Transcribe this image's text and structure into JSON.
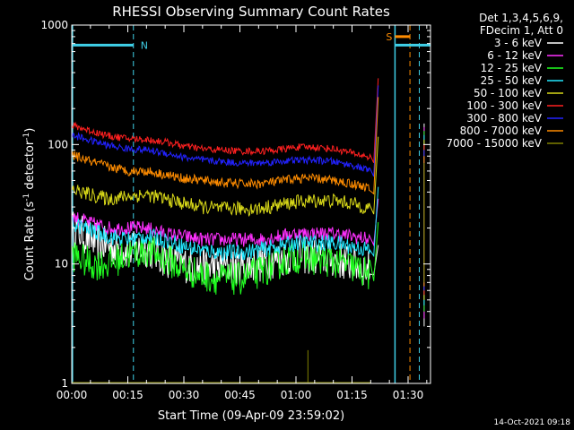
{
  "chart_data": {
    "type": "line",
    "title": "RHESSI Observing Summary Count Rates",
    "xlabel": "Start Time (09-Apr-09 23:59:02)",
    "ylabel": "Count Rate (s",
    "ylabel_sup1": "-1",
    "ylabel_mid": " detector",
    "ylabel_sup2": "-1",
    "ylabel_end": ")",
    "yscale": "log",
    "ylim": [
      1,
      1000
    ],
    "xlim_minutes": [
      0,
      96
    ],
    "x_ticks": [
      "00:00",
      "00:15",
      "00:30",
      "00:45",
      "01:00",
      "01:15",
      "01:30"
    ],
    "y_ticks": [
      "1",
      "10",
      "100",
      "1000"
    ],
    "legend_header": [
      "Det 1,3,4,5,6,9,",
      "FDecim 1, Att 0"
    ],
    "timestamp": "14-Oct-2021 09:18",
    "flags": [
      {
        "label": "N",
        "color": "#3fd0e8",
        "start": 0,
        "end": 16.5,
        "value": 680
      },
      {
        "label": "S",
        "color": "#ff8c00",
        "start": 86.5,
        "end": 90.5,
        "value": 800
      }
    ],
    "flag_s_extra": {
      "color": "#3fd0e8",
      "start": 86.5,
      "end": 96,
      "value": 680
    },
    "dashed_lines": [
      {
        "x": 16.5,
        "color": "#3fd0e8"
      },
      {
        "x": 90.5,
        "color": "#ff8c00"
      },
      {
        "x": 93.0,
        "color": "#3fd0e8"
      }
    ],
    "solid_lines": [
      {
        "x": 0.2,
        "color": "#3fd0e8"
      },
      {
        "x": 86.5,
        "color": "#3fd0e8"
      }
    ],
    "series": [
      {
        "name": "3 - 6 keV",
        "color": "#ffffff",
        "noise": 0.32,
        "times": [
          0,
          5,
          10,
          15,
          20,
          25,
          30,
          35,
          40,
          45,
          50,
          55,
          60,
          65,
          70,
          75,
          80
        ],
        "values": [
          20,
          16,
          14,
          13,
          13.5,
          11,
          10,
          9.5,
          9.5,
          9.5,
          10,
          11,
          12,
          11.5,
          11,
          10,
          9
        ]
      },
      {
        "name": "6 - 12 keV",
        "color": "#ff30ff",
        "noise": 0.12,
        "times": [
          0,
          5,
          10,
          15,
          20,
          25,
          30,
          35,
          40,
          45,
          50,
          55,
          60,
          65,
          70,
          75,
          80
        ],
        "values": [
          25,
          22,
          20,
          20,
          20,
          18,
          17,
          16,
          16,
          16,
          16,
          17,
          18,
          18,
          18,
          17,
          16
        ]
      },
      {
        "name": "12 - 25 keV",
        "color": "#20ff20",
        "noise": 0.28,
        "times": [
          0,
          5,
          10,
          15,
          20,
          25,
          30,
          35,
          40,
          45,
          50,
          55,
          60,
          65,
          70,
          75,
          80
        ],
        "values": [
          12,
          10,
          10,
          12,
          13,
          11,
          9,
          8,
          7.5,
          7.5,
          8.5,
          10,
          11.5,
          11,
          10.5,
          9.5,
          8
        ]
      },
      {
        "name": "25 - 50 keV",
        "color": "#22e8ff",
        "noise": 0.14,
        "times": [
          0,
          5,
          10,
          15,
          20,
          25,
          30,
          35,
          40,
          45,
          50,
          55,
          60,
          65,
          70,
          75,
          80
        ],
        "values": [
          22,
          19,
          17,
          16,
          17,
          16,
          14,
          13,
          12.5,
          12.5,
          13,
          14,
          15,
          15,
          15,
          14,
          13
        ]
      },
      {
        "name": "50 - 100 keV",
        "color": "#d8d818",
        "noise": 0.12,
        "times": [
          0,
          5,
          10,
          15,
          20,
          25,
          30,
          35,
          40,
          45,
          50,
          55,
          60,
          65,
          70,
          75,
          80
        ],
        "values": [
          42,
          38,
          35,
          37,
          38,
          35,
          32,
          30,
          29,
          29,
          29,
          31,
          33,
          34,
          34,
          32,
          29
        ]
      },
      {
        "name": "100 - 300 keV",
        "color": "#ff2020",
        "noise": 0.06,
        "times": [
          0,
          5,
          10,
          15,
          20,
          25,
          30,
          35,
          40,
          45,
          50,
          55,
          60,
          65,
          70,
          75,
          80
        ],
        "values": [
          145,
          130,
          118,
          112,
          110,
          105,
          97,
          92,
          90,
          88,
          88,
          90,
          95,
          95,
          92,
          85,
          78
        ]
      },
      {
        "name": "300 - 800 keV",
        "color": "#2222ff",
        "noise": 0.06,
        "times": [
          0,
          5,
          10,
          15,
          20,
          25,
          30,
          35,
          40,
          45,
          50,
          55,
          60,
          65,
          70,
          75,
          80
        ],
        "values": [
          120,
          108,
          98,
          92,
          90,
          85,
          78,
          74,
          72,
          70,
          70,
          72,
          74,
          74,
          72,
          67,
          60
        ]
      },
      {
        "name": "800 - 7000 keV",
        "color": "#ff8c00",
        "noise": 0.08,
        "times": [
          0,
          5,
          10,
          15,
          20,
          25,
          30,
          35,
          40,
          45,
          50,
          55,
          60,
          65,
          70,
          75,
          80
        ],
        "values": [
          82,
          72,
          65,
          60,
          60,
          56,
          52,
          50,
          48,
          47,
          47,
          49,
          52,
          52,
          50,
          47,
          43
        ]
      },
      {
        "name": "7000 - 15000 keV",
        "color": "#808000",
        "noise": 0.0,
        "times": [
          0,
          80
        ],
        "values": [
          1,
          1
        ]
      }
    ]
  }
}
